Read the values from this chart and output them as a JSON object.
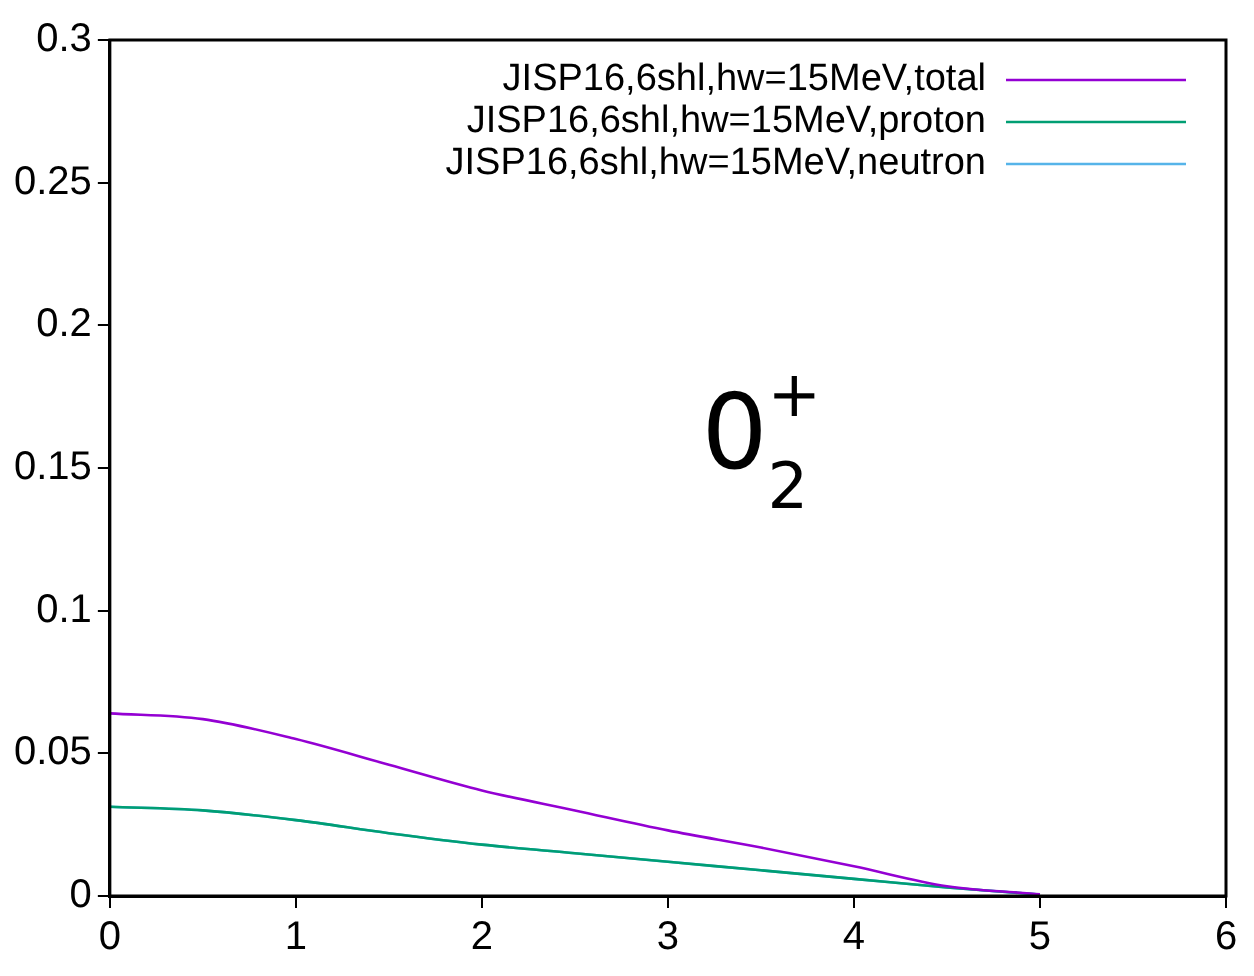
{
  "chart_data": {
    "type": "line",
    "x": [
      0,
      0.5,
      1,
      1.5,
      2,
      2.5,
      3,
      3.5,
      4,
      4.5,
      5
    ],
    "series": [
      {
        "name": "JISP16,6shl,hw=15MeV,total",
        "color": "#9400d3",
        "values": [
          0.064,
          0.062,
          0.055,
          0.046,
          0.037,
          0.03,
          0.023,
          0.017,
          0.0104,
          0.0034,
          0.0006
        ]
      },
      {
        "name": "JISP16,6shl,hw=15MeV,proton",
        "color": "#009e73",
        "values": [
          0.0313,
          0.03,
          0.0266,
          0.022,
          0.018,
          0.015,
          0.012,
          0.009,
          0.006,
          0.003,
          0.0005
        ]
      },
      {
        "name": "JISP16,6shl,hw=15MeV,neutron",
        "color": "#56b4e9",
        "values": [
          0.0313,
          0.03,
          0.0266,
          0.022,
          0.018,
          0.015,
          0.012,
          0.009,
          0.006,
          0.003,
          0.0005
        ]
      }
    ],
    "xlim": [
      0,
      6
    ],
    "xticks": [
      0,
      1,
      2,
      3,
      4,
      5,
      6
    ],
    "ylim": [
      0,
      0.3
    ],
    "yticks": [
      0,
      0.05,
      0.1,
      0.15,
      0.2,
      0.25,
      0.3
    ],
    "grid": false,
    "legend": "top right",
    "marker": "none",
    "line_style": "solid",
    "annotations": [
      "0$^{+}$$_{2}$"
    ]
  }
}
